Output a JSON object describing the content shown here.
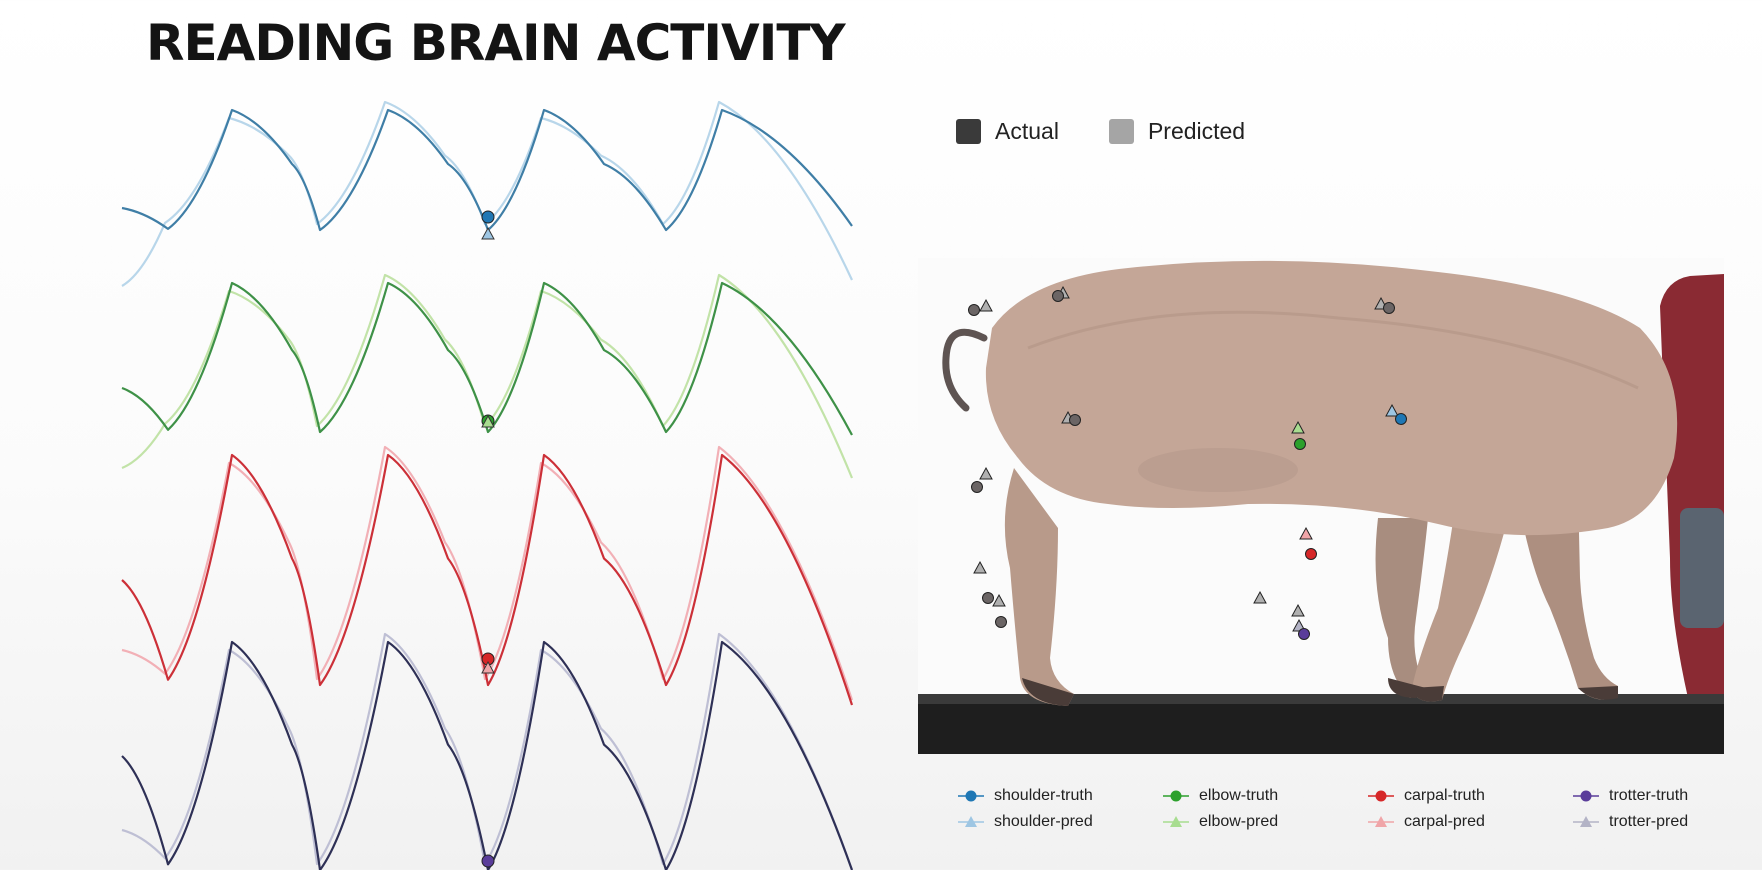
{
  "title": "READING BRAIN ACTIVITY",
  "legend": [
    {
      "label": "Actual",
      "color": "#3a3a3a"
    },
    {
      "label": "Predicted",
      "color": "#a5a5a5"
    }
  ],
  "keypoint_legend": [
    {
      "label": "shoulder-truth",
      "color": "#1f77b4",
      "marker": "circle"
    },
    {
      "label": "elbow-truth",
      "color": "#2ca02c",
      "marker": "circle"
    },
    {
      "label": "carpal-truth",
      "color": "#d62728",
      "marker": "circle"
    },
    {
      "label": "trotter-truth",
      "color": "#5a3d9a",
      "marker": "circle"
    },
    {
      "label": "shoulder-pred",
      "color": "#9ec6e3",
      "marker": "triangle"
    },
    {
      "label": "elbow-pred",
      "color": "#a8dd90",
      "marker": "triangle"
    },
    {
      "label": "carpal-pred",
      "color": "#f0a5a8",
      "marker": "triangle"
    },
    {
      "label": "trotter-pred",
      "color": "#b3b3c6",
      "marker": "triangle"
    }
  ],
  "trace_colors": {
    "shoulder": {
      "actual": "#3f7ea6",
      "pred": "#b8d6ea"
    },
    "elbow": {
      "actual": "#3e9147",
      "pred": "#c2e3a8"
    },
    "carpal": {
      "actual": "#cc3038",
      "pred": "#f2b0b6"
    },
    "trotter": {
      "actual": "#2e3056",
      "pred": "#bebfd4"
    }
  }
}
